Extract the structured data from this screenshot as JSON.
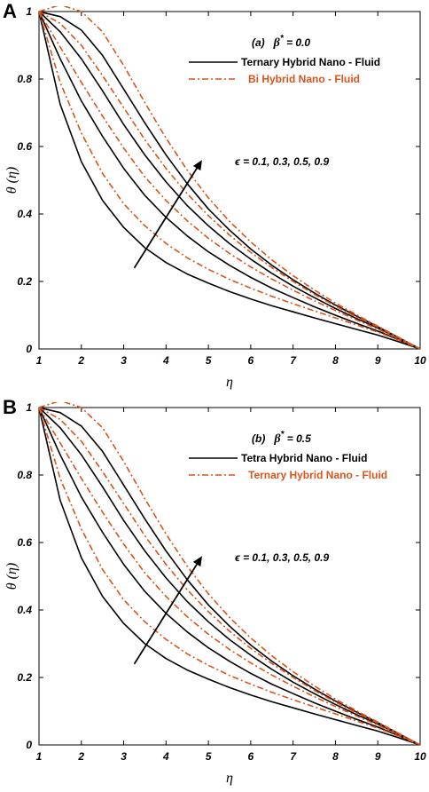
{
  "colors": {
    "ternary": "#000000",
    "bi": "#d9541a",
    "axis": "#000000"
  },
  "chart_data": [
    {
      "type": "line",
      "panel_label": "A",
      "annotation_case": "(a)",
      "annotation_param": "β",
      "annotation_param_sup": "*",
      "annotation_value": " = 0.0",
      "epsilon_label": "ϵ  = 0.1, 0.3, 0.5, 0.9",
      "xlabel": "η",
      "ylabel": "θ (η)",
      "xlim": [
        1,
        10
      ],
      "ylim": [
        0,
        1
      ],
      "xticks": [
        1,
        2,
        3,
        4,
        5,
        6,
        7,
        8,
        9,
        10
      ],
      "yticks": [
        0,
        0.2,
        0.4,
        0.6,
        0.8,
        1
      ],
      "legend_placement": "top-right",
      "x": [
        1,
        1.5,
        2,
        2.5,
        3,
        3.5,
        4,
        4.5,
        5,
        5.5,
        6,
        6.5,
        7,
        7.5,
        8,
        8.5,
        9,
        9.5,
        10
      ],
      "series": [
        {
          "name": "Ternary Hybrid Nano - Fluid",
          "style": "solid",
          "color": "#000000",
          "curves": [
            [
              1,
              0.725,
              0.555,
              0.44,
              0.36,
              0.3,
              0.256,
              0.222,
              0.195,
              0.17,
              0.148,
              0.128,
              0.11,
              0.092,
              0.075,
              0.058,
              0.041,
              0.021,
              0
            ],
            [
              1,
              0.86,
              0.735,
              0.63,
              0.535,
              0.455,
              0.39,
              0.335,
              0.288,
              0.248,
              0.212,
              0.18,
              0.152,
              0.125,
              0.1,
              0.076,
              0.053,
              0.027,
              0
            ],
            [
              1,
              0.94,
              0.86,
              0.765,
              0.665,
              0.575,
              0.495,
              0.425,
              0.365,
              0.312,
              0.266,
              0.224,
              0.186,
              0.152,
              0.12,
              0.09,
              0.062,
              0.031,
              0
            ],
            [
              1,
              0.985,
              0.945,
              0.87,
              0.77,
              0.67,
              0.575,
              0.49,
              0.415,
              0.352,
              0.296,
              0.248,
              0.205,
              0.166,
              0.13,
              0.097,
              0.066,
              0.033,
              0
            ]
          ]
        },
        {
          "name": "Bi Hybrid Nano - Fluid",
          "style": "dashdot",
          "color": "#d9541a",
          "curves": [
            [
              1,
              0.79,
              0.64,
              0.52,
              0.43,
              0.365,
              0.313,
              0.27,
              0.236,
              0.206,
              0.18,
              0.156,
              0.134,
              0.113,
              0.092,
              0.071,
              0.05,
              0.026,
              0
            ],
            [
              1,
              0.895,
              0.79,
              0.69,
              0.595,
              0.51,
              0.44,
              0.38,
              0.328,
              0.283,
              0.243,
              0.207,
              0.174,
              0.143,
              0.114,
              0.086,
              0.059,
              0.03,
              0
            ],
            [
              1,
              0.965,
              0.9,
              0.81,
              0.715,
              0.62,
              0.535,
              0.46,
              0.395,
              0.337,
              0.286,
              0.241,
              0.2,
              0.162,
              0.127,
              0.095,
              0.065,
              0.033,
              0
            ],
            [
              1,
              1.02,
              1.0,
              0.94,
              0.84,
              0.73,
              0.625,
              0.53,
              0.448,
              0.378,
              0.317,
              0.264,
              0.217,
              0.175,
              0.136,
              0.101,
              0.068,
              0.034,
              0
            ]
          ]
        }
      ]
    },
    {
      "type": "line",
      "panel_label": "B",
      "annotation_case": "(b)",
      "annotation_param": "β",
      "annotation_param_sup": "*",
      "annotation_value": " = 0.5",
      "epsilon_label": "ϵ  = 0.1, 0.3, 0.5, 0.9",
      "xlabel": "η",
      "ylabel": "θ (η)",
      "xlim": [
        1,
        10
      ],
      "ylim": [
        0,
        1
      ],
      "xticks": [
        1,
        2,
        3,
        4,
        5,
        6,
        7,
        8,
        9,
        10
      ],
      "yticks": [
        0,
        0.2,
        0.4,
        0.6,
        0.8,
        1
      ],
      "legend_placement": "top-right",
      "x": [
        1,
        1.5,
        2,
        2.5,
        3,
        3.5,
        4,
        4.5,
        5,
        5.5,
        6,
        6.5,
        7,
        7.5,
        8,
        8.5,
        9,
        9.5,
        10
      ],
      "series": [
        {
          "name": "Tetra Hybrid Nano - Fluid",
          "style": "solid",
          "color": "#000000",
          "curves": [
            [
              1,
              0.725,
              0.555,
              0.44,
              0.36,
              0.3,
              0.256,
              0.222,
              0.195,
              0.17,
              0.148,
              0.128,
              0.11,
              0.092,
              0.075,
              0.058,
              0.041,
              0.021,
              0
            ],
            [
              1,
              0.86,
              0.735,
              0.63,
              0.535,
              0.455,
              0.39,
              0.335,
              0.288,
              0.248,
              0.212,
              0.18,
              0.152,
              0.125,
              0.1,
              0.076,
              0.053,
              0.027,
              0
            ],
            [
              1,
              0.94,
              0.86,
              0.765,
              0.665,
              0.575,
              0.495,
              0.425,
              0.365,
              0.312,
              0.266,
              0.224,
              0.186,
              0.152,
              0.12,
              0.09,
              0.062,
              0.031,
              0
            ],
            [
              1,
              0.985,
              0.945,
              0.87,
              0.77,
              0.67,
              0.575,
              0.49,
              0.415,
              0.352,
              0.296,
              0.248,
              0.205,
              0.166,
              0.13,
              0.097,
              0.066,
              0.033,
              0
            ]
          ]
        },
        {
          "name": "Ternary Hybrid Nano - Fluid",
          "style": "dashdot",
          "color": "#d9541a",
          "curves": [
            [
              1,
              0.79,
              0.64,
              0.52,
              0.43,
              0.365,
              0.313,
              0.27,
              0.236,
              0.206,
              0.18,
              0.156,
              0.134,
              0.113,
              0.092,
              0.071,
              0.05,
              0.026,
              0
            ],
            [
              1,
              0.895,
              0.79,
              0.69,
              0.595,
              0.51,
              0.44,
              0.38,
              0.328,
              0.283,
              0.243,
              0.207,
              0.174,
              0.143,
              0.114,
              0.086,
              0.059,
              0.03,
              0
            ],
            [
              1,
              0.965,
              0.9,
              0.81,
              0.715,
              0.62,
              0.535,
              0.46,
              0.395,
              0.337,
              0.286,
              0.241,
              0.2,
              0.162,
              0.127,
              0.095,
              0.065,
              0.033,
              0
            ],
            [
              1,
              1.02,
              1.0,
              0.94,
              0.84,
              0.73,
              0.625,
              0.53,
              0.448,
              0.378,
              0.317,
              0.264,
              0.217,
              0.175,
              0.136,
              0.101,
              0.068,
              0.034,
              0
            ]
          ]
        }
      ]
    }
  ]
}
